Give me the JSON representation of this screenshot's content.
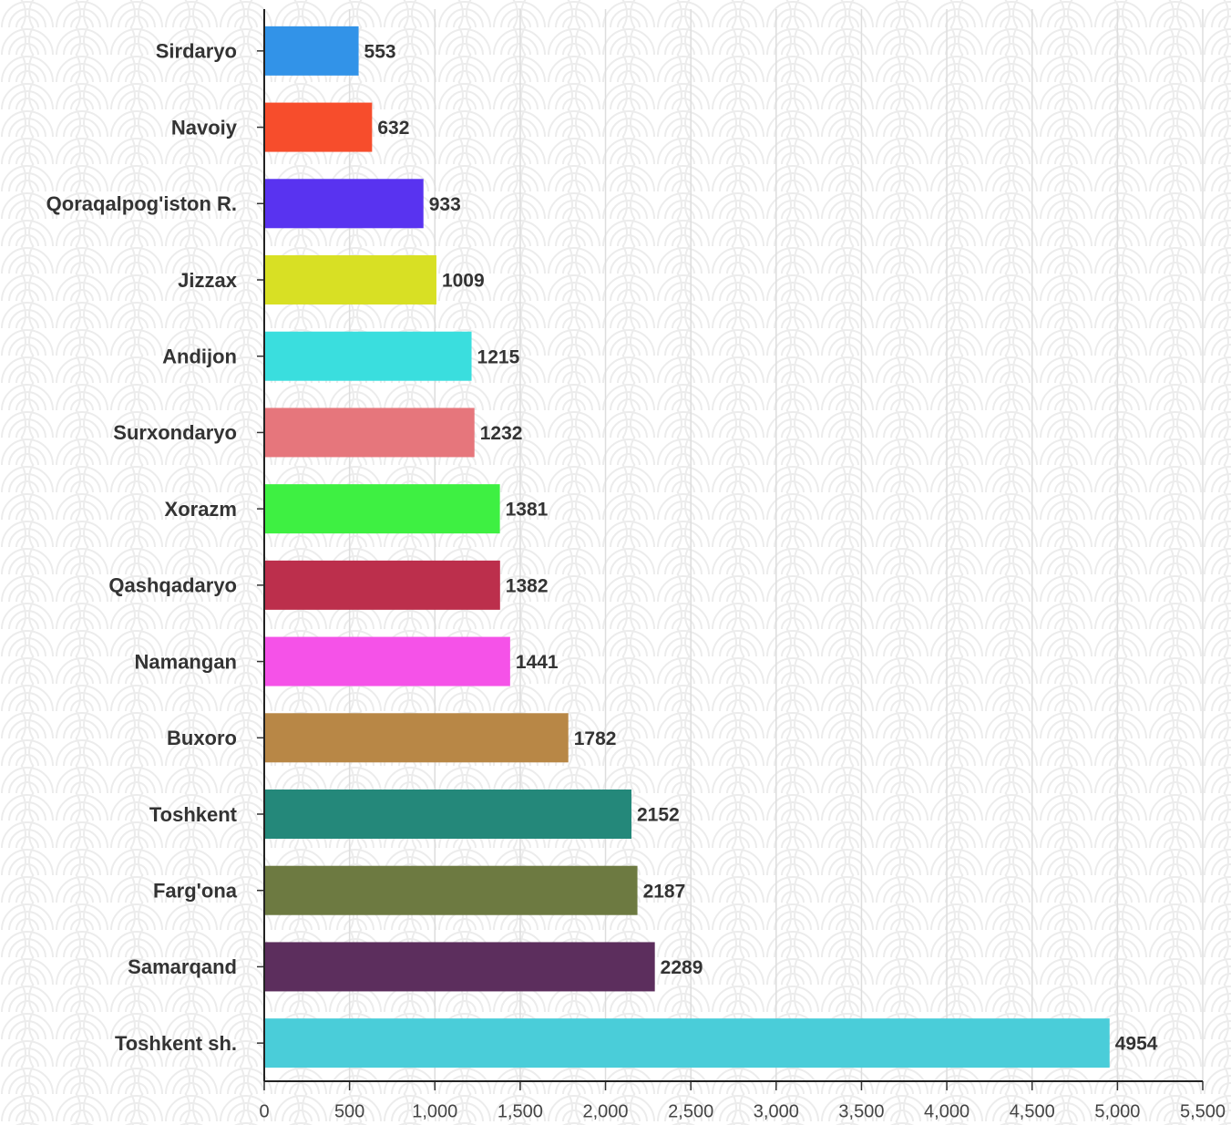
{
  "chart_data": {
    "type": "barh",
    "categories": [
      "Sirdaryo",
      "Navoiy",
      "Qoraqalpog'iston R.",
      "Jizzax",
      "Andijon",
      "Surxondaryo",
      "Xorazm",
      "Qashqadaryo",
      "Namangan",
      "Buxoro",
      "Toshkent",
      "Farg'ona",
      "Samarqand",
      "Toshkent sh."
    ],
    "values": [
      553,
      632,
      933,
      1009,
      1215,
      1232,
      1381,
      1382,
      1441,
      1782,
      2152,
      2187,
      2289,
      4954
    ],
    "colors": [
      "#3293e8",
      "#f74d2c",
      "#5933f0",
      "#d8e024",
      "#3adede",
      "#e6767c",
      "#3ef042",
      "#bc2f4c",
      "#f552e8",
      "#b88746",
      "#24887a",
      "#6d7a41",
      "#5c2e5d",
      "#4acdd9"
    ],
    "xlim": [
      0,
      5500
    ],
    "xticks": [
      0,
      500,
      {
        "value": 1000,
        "label": "1,000"
      },
      {
        "value": 1500,
        "label": "1,500"
      },
      {
        "value": 2000,
        "label": "2,000"
      },
      {
        "value": 2500,
        "label": "2,500"
      },
      {
        "value": 3000,
        "label": "3,000"
      },
      {
        "value": 3500,
        "label": "3,500"
      },
      {
        "value": 4000,
        "label": "4,000"
      },
      {
        "value": 4500,
        "label": "4,500"
      },
      {
        "value": 5000,
        "label": "5,000"
      },
      {
        "value": 5500,
        "label": "5,500"
      }
    ],
    "grid": true
  }
}
